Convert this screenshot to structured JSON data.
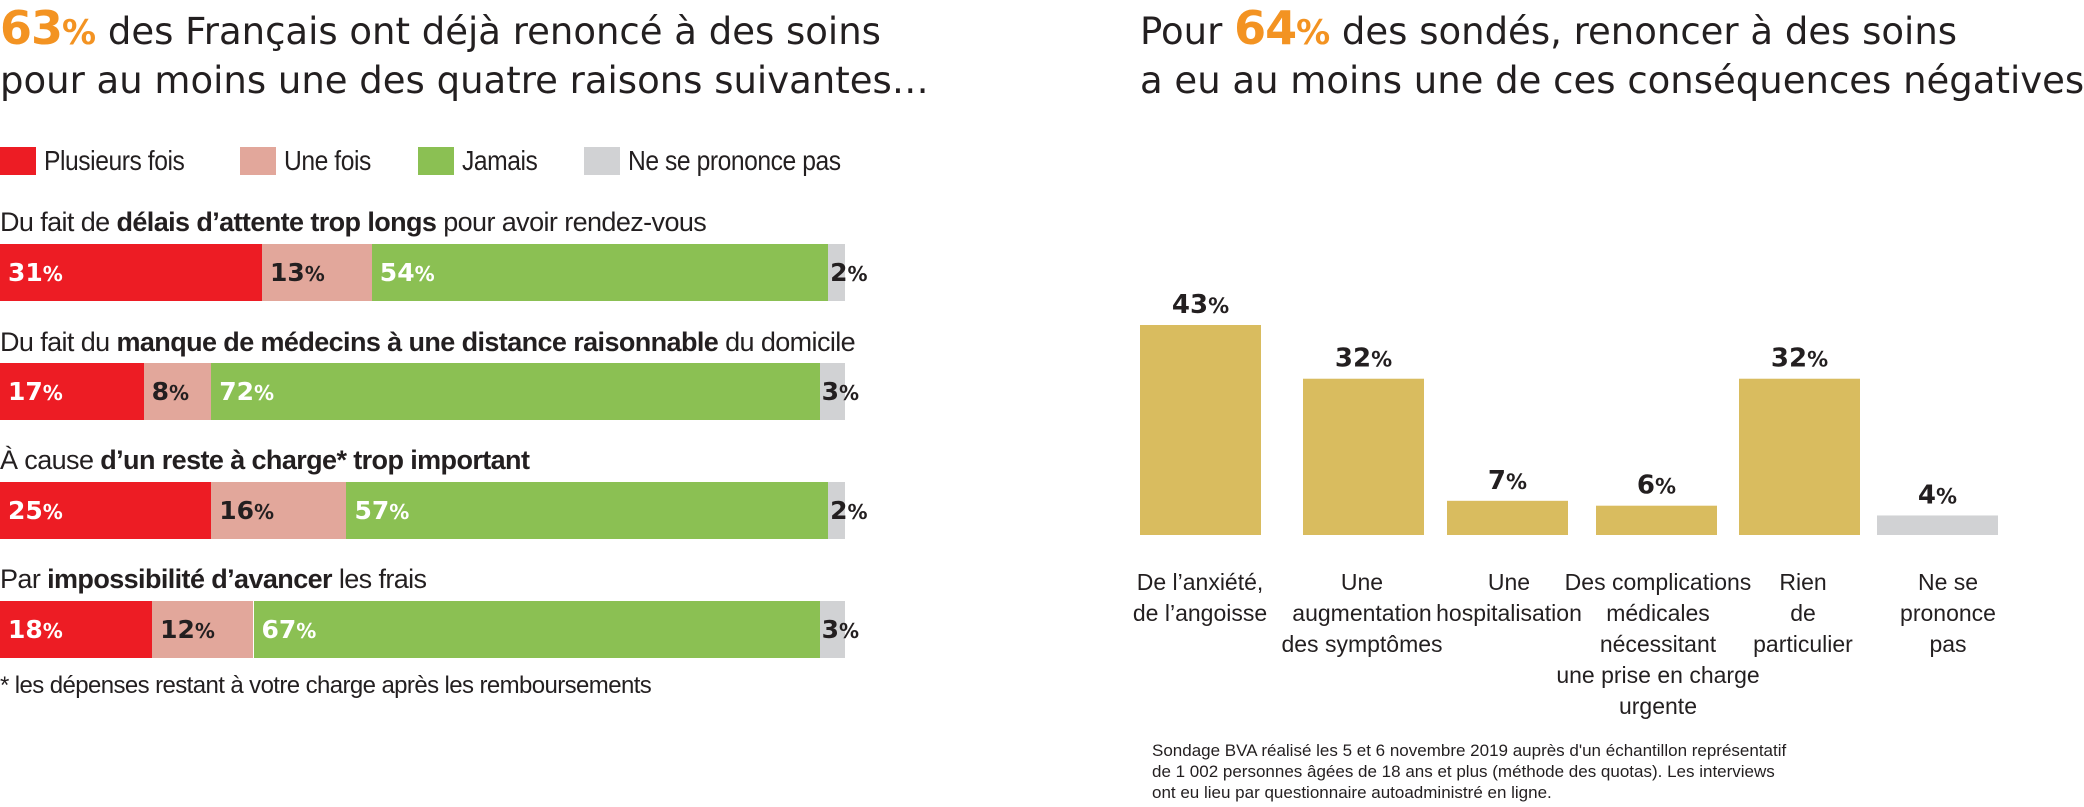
{
  "left": {
    "title": {
      "highlight": "63",
      "percent": "%",
      "line1_rest": " des Français ont déjà renoncé à des soins",
      "line2": "pour au moins une des quatre raisons suivantes…"
    },
    "footnote": "* les dépenses restant à votre charge après les remboursements"
  },
  "right": {
    "title": {
      "prefix": "Pour ",
      "highlight": "64",
      "percent": "%",
      "line1_rest": " des sondés, renoncer à des soins",
      "line2": "a eu au moins une de ces conséquences négatives"
    },
    "source": [
      "Sondage BVA réalisé les 5 et 6 novembre 2019 auprès d'un échantillon représentatif",
      "de 1 002 personnes âgées de 18 ans et plus (méthode des quotas). Les interviews",
      "ont eu lieu par questionnaire autoadministré en ligne."
    ]
  },
  "colors": {
    "plusieurs": "#ed1c24",
    "une_fois": "#e2a79b",
    "jamais": "#8bc053",
    "nsp": "#d1d2d4",
    "gold": "#d9bc5f",
    "accent": "#f39322"
  },
  "chart_data": [
    {
      "type": "bar",
      "stacked": true,
      "orientation": "horizontal",
      "title": "63% des Français ont déjà renoncé à des soins pour au moins une des quatre raisons suivantes…",
      "unit": "%",
      "legend_position": "top",
      "legend": [
        "Plusieurs fois",
        "Une fois",
        "Jamais",
        "Ne se prononce pas"
      ],
      "categories": [
        [
          {
            "t": "Du fait de ",
            "b": false
          },
          {
            "t": "délais d’attente trop longs",
            "b": true
          },
          {
            "t": " pour avoir rendez-vous",
            "b": false
          }
        ],
        [
          {
            "t": "Du fait du ",
            "b": false
          },
          {
            "t": "manque de médecins à une distance raisonnable",
            "b": true
          },
          {
            "t": " du domicile",
            "b": false
          }
        ],
        [
          {
            "t": "À cause ",
            "b": false
          },
          {
            "t": "d’un reste à charge* trop important",
            "b": true
          }
        ],
        [
          {
            "t": "Par ",
            "b": false
          },
          {
            "t": "impossibilité d’avancer",
            "b": true
          },
          {
            "t": " les frais",
            "b": false
          }
        ]
      ],
      "series": [
        {
          "name": "Plusieurs fois",
          "values": [
            31,
            17,
            25,
            18
          ]
        },
        {
          "name": "Une fois",
          "values": [
            13,
            8,
            16,
            12
          ]
        },
        {
          "name": "Jamais",
          "values": [
            54,
            72,
            57,
            67
          ]
        },
        {
          "name": "Ne se prononce pas",
          "values": [
            2,
            3,
            2,
            3
          ]
        }
      ]
    },
    {
      "type": "bar",
      "orientation": "vertical",
      "title": "Pour 64% des sondés, renoncer à des soins a eu au moins une de ces conséquences négatives",
      "unit": "%",
      "ylim": [
        0,
        43
      ],
      "grid": false,
      "categories": [
        [
          "De l’anxiété,",
          "de l’angoisse"
        ],
        [
          "Une",
          "augmentation",
          "des symptômes"
        ],
        [
          "Une",
          "hospitalisation"
        ],
        [
          "Des complications",
          "médicales",
          "nécessitant",
          "une prise en charge",
          "urgente"
        ],
        [
          "Rien",
          "de",
          "particulier"
        ],
        [
          "Ne se",
          "prononce",
          "pas"
        ]
      ],
      "values": [
        43,
        32,
        7,
        6,
        32,
        4
      ],
      "highlight": [
        false,
        false,
        false,
        false,
        false,
        true
      ]
    }
  ]
}
